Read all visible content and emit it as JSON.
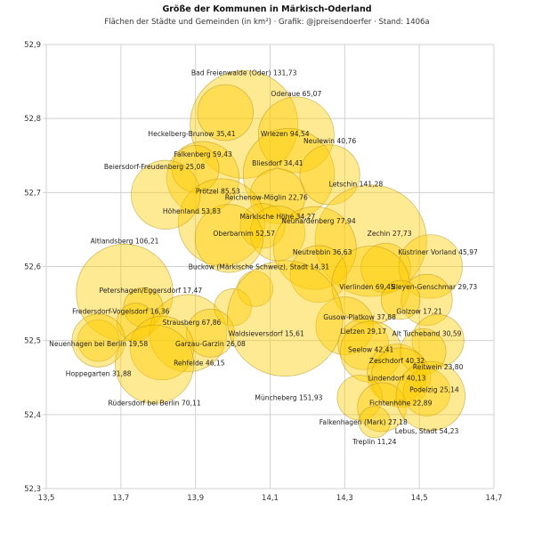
{
  "header": {
    "title": "Größe der Kommunen in Märkisch-Oderland",
    "subtitle": "Flächen der Städte und Gemeinden (in km²) · Grafik: @jpreisendoerfer · Stand: 1406a"
  },
  "colors": {
    "bubble_fill": "#FFCC00",
    "bubble_opacity": 0.42,
    "bubble_stroke": "#B8961E",
    "grid": "#D0D0D0"
  },
  "chart_data": {
    "type": "scatter",
    "title": "Größe der Kommunen in Märkisch-Oderland",
    "subtitle": "Flächen der Städte und Gemeinden (in km²) · Grafik: @jpreisendoerfer · Stand: 1406a",
    "xlabel": "",
    "ylabel": "",
    "xlim": [
      13.5,
      14.7
    ],
    "ylim": [
      52.3,
      52.9
    ],
    "x_ticks": [
      "13,5",
      "13,7",
      "13,9",
      "14,1",
      "14,3",
      "14,5",
      "14,7"
    ],
    "y_ticks": [
      "52,9",
      "52,8",
      "52,7",
      "52,6",
      "52,5",
      "52,4",
      "52,3"
    ],
    "grid": true,
    "size_encoding": "area_km2",
    "points": [
      {
        "name": "Bad Freienwalde (Oder)",
        "area": 131.73,
        "label": "Bad Freienwalde (Oder) 131,73",
        "x": 14.03,
        "y": 52.792,
        "lx": 14.03,
        "ly": 52.862
      },
      {
        "name": "Oderaue",
        "area": 65.07,
        "label": "Oderaue 65,07",
        "x": 14.17,
        "y": 52.778,
        "lx": 14.17,
        "ly": 52.834
      },
      {
        "name": "Heckelberg-Brunow",
        "area": 35.41,
        "label": "Heckelberg-Brunow 35,41",
        "x": 13.98,
        "y": 52.808,
        "lx": 13.89,
        "ly": 52.78
      },
      {
        "name": "Wriezen",
        "area": 94.54,
        "label": "Wriezen 94,54",
        "x": 14.15,
        "y": 52.725,
        "lx": 14.14,
        "ly": 52.78
      },
      {
        "name": "Neulewin",
        "area": 40.76,
        "label": "Neulewin 40,76",
        "x": 14.26,
        "y": 52.724,
        "lx": 14.26,
        "ly": 52.77
      },
      {
        "name": "Falkenberg",
        "area": 59.43,
        "label": "Falkenberg 59,43",
        "x": 13.92,
        "y": 52.72,
        "lx": 13.92,
        "ly": 52.752
      },
      {
        "name": "Bliesdorf",
        "area": 34.41,
        "label": "Bliesdorf 34,41",
        "x": 14.12,
        "y": 52.695,
        "lx": 14.12,
        "ly": 52.74
      },
      {
        "name": "Beiersdorf-Freudenberg",
        "area": 25.08,
        "label": "Beiersdorf-Freudenberg 25,08",
        "x": 13.9,
        "y": 52.732,
        "lx": 13.79,
        "ly": 52.735
      },
      {
        "name": "Letschin",
        "area": 141.28,
        "label": "Letschin 141,28",
        "x": 14.37,
        "y": 52.635,
        "lx": 14.33,
        "ly": 52.712
      },
      {
        "name": "Prötzel",
        "area": 85.53,
        "label": "Prötzel 85,53",
        "x": 13.97,
        "y": 52.66,
        "lx": 13.96,
        "ly": 52.702
      },
      {
        "name": "Reichenow-Möglin",
        "area": 22.76,
        "label": "Reichenow-Möglin 22,76",
        "x": 14.08,
        "y": 52.655,
        "lx": 14.09,
        "ly": 52.694
      },
      {
        "name": "Höhenland",
        "area": 53.83,
        "label": "Höhenland 53,83",
        "x": 13.82,
        "y": 52.697,
        "lx": 13.89,
        "ly": 52.675
      },
      {
        "name": "Märkische Höhe",
        "area": 34.27,
        "label": "Märkische Höhe 34,27",
        "x": 14.12,
        "y": 52.645,
        "lx": 14.12,
        "ly": 52.668
      },
      {
        "name": "Neuhardenberg",
        "area": 77.94,
        "label": "Neuhardenberg 77,94",
        "x": 14.22,
        "y": 52.625,
        "lx": 14.23,
        "ly": 52.662
      },
      {
        "name": "Oberbarnim",
        "area": 52.57,
        "label": "Oberbarnim 52,57",
        "x": 13.99,
        "y": 52.638,
        "lx": 14.03,
        "ly": 52.645
      },
      {
        "name": "Zechin",
        "area": 27.73,
        "label": "Zechin 27,73",
        "x": 14.41,
        "y": 52.598,
        "lx": 14.42,
        "ly": 52.645
      },
      {
        "name": "Küstriner Vorland",
        "area": 45.97,
        "label": "Küstriner Vorland 45,97",
        "x": 14.53,
        "y": 52.6,
        "lx": 14.55,
        "ly": 52.62
      },
      {
        "name": "Altlandsberg",
        "area": 106.21,
        "label": "Altlandsberg 106,21",
        "x": 13.71,
        "y": 52.565,
        "lx": 13.71,
        "ly": 52.635
      },
      {
        "name": "Neutrebbin",
        "area": 36.63,
        "label": "Neutrebbin 36,63",
        "x": 14.23,
        "y": 52.59,
        "lx": 14.24,
        "ly": 52.62
      },
      {
        "name": "Buckow (Märkische Schweiz), Stadt",
        "area": 14.31,
        "label": "Buckow (Märkische Schweiz), Stadt 14,31",
        "x": 14.06,
        "y": 52.57,
        "lx": 14.07,
        "ly": 52.6
      },
      {
        "name": "Vierlinden",
        "area": 69.45,
        "label": "Vierlinden 69,45",
        "x": 14.37,
        "y": 52.575,
        "lx": 14.36,
        "ly": 52.573
      },
      {
        "name": "Bleyen-Genschmar",
        "area": 29.73,
        "label": "Bleyen-Genschmar 29,73",
        "x": 14.52,
        "y": 52.555,
        "lx": 14.54,
        "ly": 52.573
      },
      {
        "name": "Petershagen/Eggersdorf",
        "area": 17.47,
        "label": "Petershagen/Eggersdorf 17,47",
        "x": 13.76,
        "y": 52.545,
        "lx": 13.78,
        "ly": 52.568
      },
      {
        "name": "Golzow",
        "area": 17.21,
        "label": "Golzow 17,21",
        "x": 14.45,
        "y": 52.555,
        "lx": 14.5,
        "ly": 52.54
      },
      {
        "name": "Fredersdorf-Vogelsdorf",
        "area": 16.36,
        "label": "Fredersdorf-Vogelsdorf 16,36",
        "x": 13.74,
        "y": 52.525,
        "lx": 13.7,
        "ly": 52.54
      },
      {
        "name": "Gusow-Platkow",
        "area": 37.88,
        "label": "Gusow-Platkow 37,88",
        "x": 14.3,
        "y": 52.52,
        "lx": 14.34,
        "ly": 52.532
      },
      {
        "name": "Strausberg",
        "area": 67.86,
        "label": "Strausberg 67,86",
        "x": 13.88,
        "y": 52.51,
        "lx": 13.89,
        "ly": 52.525
      },
      {
        "name": "Waldsieversdorf",
        "area": 15.61,
        "label": "Waldsieversdorf 15,61",
        "x": 14.0,
        "y": 52.545,
        "lx": 14.09,
        "ly": 52.51
      },
      {
        "name": "Lietzen",
        "area": 29.17,
        "label": "Lietzen 29,17",
        "x": 14.35,
        "y": 52.495,
        "lx": 14.35,
        "ly": 52.513
      },
      {
        "name": "Alt Tucheband",
        "area": 30.59,
        "label": "Alt Tucheband 30,59",
        "x": 14.55,
        "y": 52.5,
        "lx": 14.52,
        "ly": 52.51
      },
      {
        "name": "Neuenhagen bei Berlin",
        "area": 19.58,
        "label": "Neuenhagen bei Berlin 19,58",
        "x": 13.64,
        "y": 52.5,
        "lx": 13.64,
        "ly": 52.496
      },
      {
        "name": "Garzau-Garzin",
        "area": 26.08,
        "label": "Garzau-Garzin 26,08",
        "x": 13.94,
        "y": 52.51,
        "lx": 13.94,
        "ly": 52.496
      },
      {
        "name": "Seelow",
        "area": 42.41,
        "label": "Seelow 42,41",
        "x": 14.37,
        "y": 52.485,
        "lx": 14.37,
        "ly": 52.488
      },
      {
        "name": "Zeschdorf",
        "area": 40.32,
        "label": "Zeschdorf 40,32",
        "x": 14.44,
        "y": 52.455,
        "lx": 14.44,
        "ly": 52.473
      },
      {
        "name": "Rehfelde",
        "area": 46.15,
        "label": "Rehfelde 46,15",
        "x": 13.81,
        "y": 52.49,
        "lx": 13.91,
        "ly": 52.47
      },
      {
        "name": "Reitwein",
        "area": 23.8,
        "label": "Reitwein 23,80",
        "x": 14.51,
        "y": 52.485,
        "lx": 14.55,
        "ly": 52.465
      },
      {
        "name": "Münchenberg",
        "area": 151.93,
        "label": "Müncheberg 151,93",
        "x": 14.14,
        "y": 52.53,
        "lx": 14.15,
        "ly": 52.423
      },
      {
        "name": "Hoppegarten",
        "area": 31.88,
        "label": "Hoppegarten 31,88",
        "x": 13.64,
        "y": 52.5,
        "lx": 13.64,
        "ly": 52.456
      },
      {
        "name": "Lindendorf",
        "area": 40.13,
        "label": "Lindendorf 40,13",
        "x": 14.45,
        "y": 52.45,
        "lx": 14.44,
        "ly": 52.45
      },
      {
        "name": "Podelzig",
        "area": 25.14,
        "label": "Podelzig 25,14",
        "x": 14.52,
        "y": 52.43,
        "lx": 14.54,
        "ly": 52.434
      },
      {
        "name": "Fichtenhöhe",
        "area": 22.89,
        "label": "Fichtenhöhe 22,89",
        "x": 14.34,
        "y": 52.423,
        "lx": 14.45,
        "ly": 52.416
      },
      {
        "name": "Rüdersdorf bei Berlin",
        "area": 70.11,
        "label": "Rüdersdorf bei Berlin 70,11",
        "x": 13.79,
        "y": 52.468,
        "lx": 13.79,
        "ly": 52.416
      },
      {
        "name": "Falkenhagen (Mark)",
        "area": 27.18,
        "label": "Falkenhagen (Mark) 27,18",
        "x": 14.4,
        "y": 52.41,
        "lx": 14.35,
        "ly": 52.39
      },
      {
        "name": "Lebus, Stadt",
        "area": 54.23,
        "label": "Lebus, Stadt 54,23",
        "x": 14.53,
        "y": 52.425,
        "lx": 14.52,
        "ly": 52.378
      },
      {
        "name": "Treplin",
        "area": 11.24,
        "label": "Treplin 11,24",
        "x": 14.38,
        "y": 52.39,
        "lx": 14.38,
        "ly": 52.364
      }
    ]
  }
}
